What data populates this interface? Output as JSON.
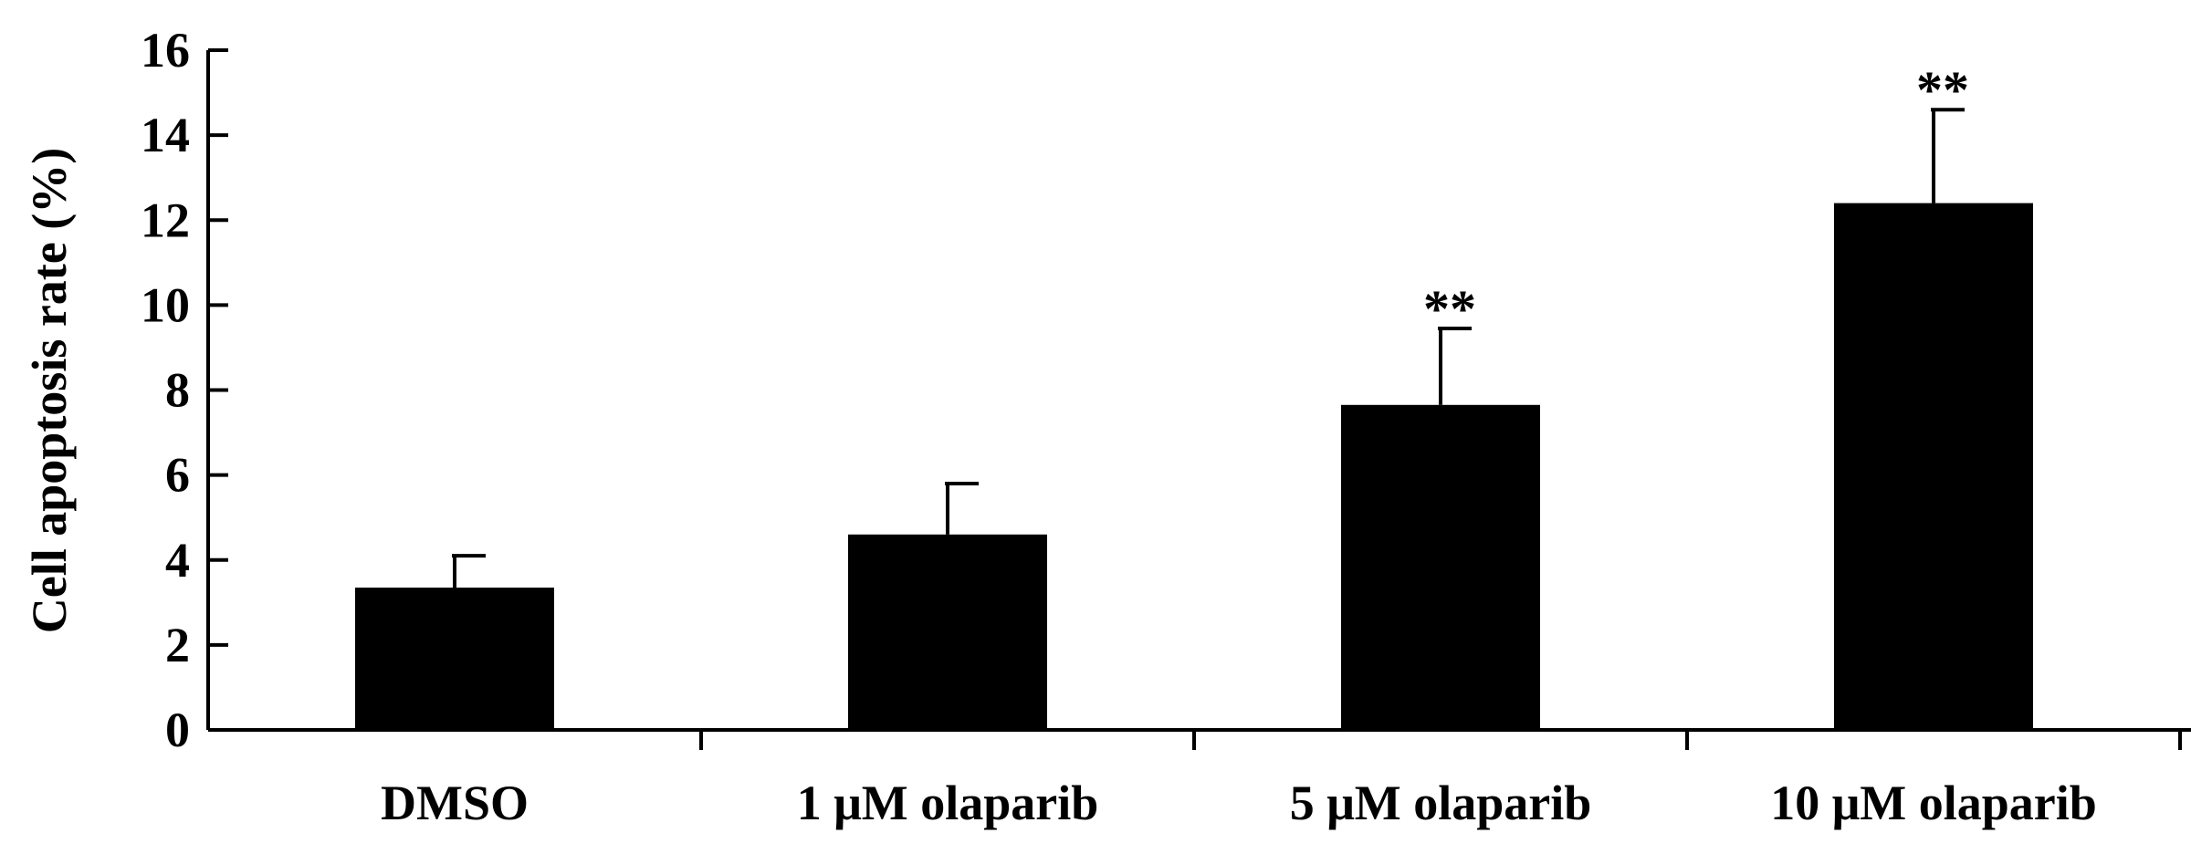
{
  "chart_data": {
    "type": "bar",
    "title": "",
    "xlabel": "",
    "ylabel": "Cell apoptosis rate (%)",
    "ylim": [
      0,
      16
    ],
    "yticks": [
      0,
      2,
      4,
      6,
      8,
      10,
      12,
      14,
      16
    ],
    "grid": false,
    "categories": [
      "DMSO",
      "1 μM olaparib",
      "5 μM olaparib",
      "10 μM olaparib"
    ],
    "values": [
      3.35,
      4.6,
      7.65,
      12.4
    ],
    "errors": [
      0.75,
      1.2,
      1.8,
      2.2
    ],
    "annotations": [
      "",
      "",
      "**",
      "**"
    ],
    "colors": {
      "bar": "#000000",
      "axis": "#000000"
    }
  }
}
